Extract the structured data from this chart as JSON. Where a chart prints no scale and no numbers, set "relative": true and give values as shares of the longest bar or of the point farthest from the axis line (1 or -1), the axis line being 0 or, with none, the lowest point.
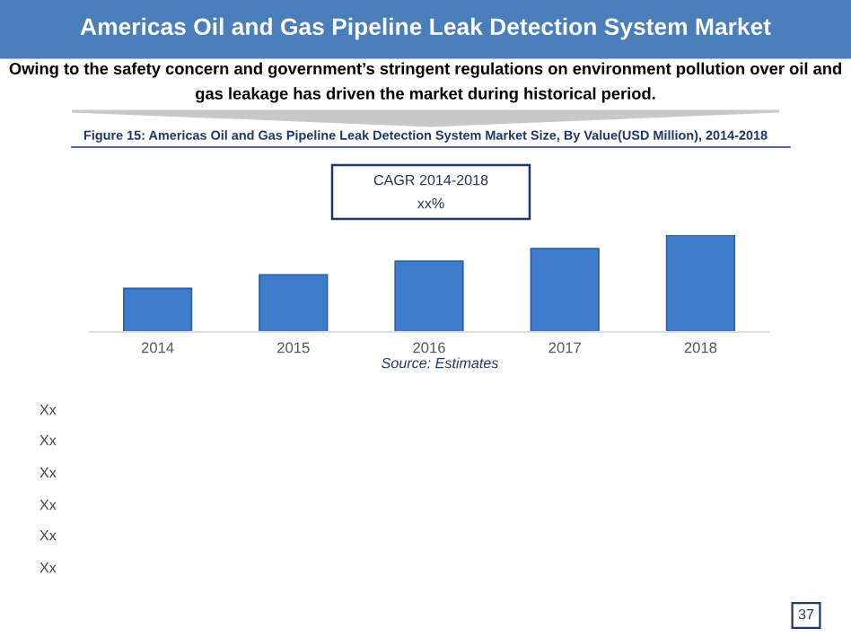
{
  "chart_data": {
    "type": "bar",
    "title": "Americas Oil and Gas Pipeline Leak Detection System Market",
    "subtitle": "Owing to the safety concern and government’s stringent regulations on environment pollution over oil and gas leakage has driven the market during historical period.",
    "categories": [
      "2014",
      "2015",
      "2016",
      "2017",
      "2018"
    ],
    "values": [
      0.45,
      0.59,
      0.73,
      0.86,
      1
    ],
    "color": "#3d7dcb",
    "relative": true,
    "grid": false,
    "legend": false,
    "annotations": [
      "Figure 15: Americas Oil and Gas Pipeline Leak Detection System Market Size, By Value(USD Million), 2014-2018",
      "CAGR 2014-2018",
      "xx%",
      "Source: Estimates",
      "Xx",
      "Xx",
      "Xx",
      "Xx",
      "Xx",
      "Xx",
      "37"
    ]
  }
}
